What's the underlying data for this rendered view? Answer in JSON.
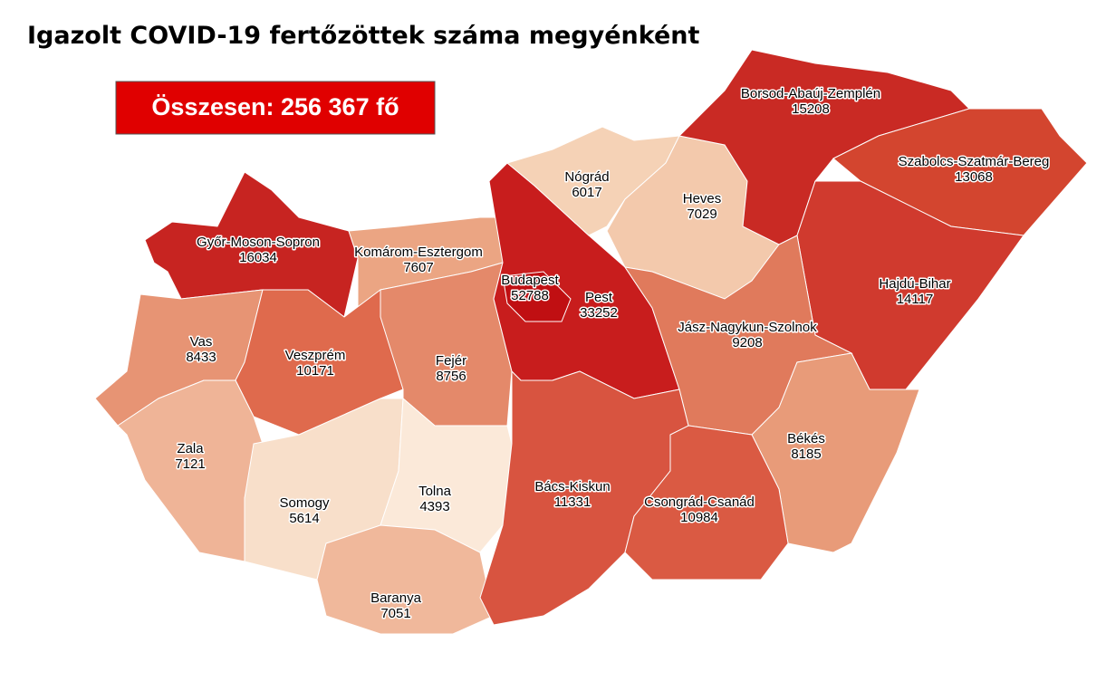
{
  "title": "Igazolt COVID-19 fertőzöttek száma megyénként",
  "total": "Összesen: 256 367 fő",
  "regions": [
    {
      "name": "Győr-Moson-Sopron",
      "value": 16034,
      "color": "#c72421"
    },
    {
      "name": "Komárom-Esztergom",
      "value": 7607,
      "color": "#eba583"
    },
    {
      "name": "Vas",
      "value": 8433,
      "color": "#e79474"
    },
    {
      "name": "Veszprém",
      "value": 10171,
      "color": "#df6a4d"
    },
    {
      "name": "Fejér",
      "value": 8756,
      "color": "#e4896a"
    },
    {
      "name": "Zala",
      "value": 7121,
      "color": "#efb497"
    },
    {
      "name": "Somogy",
      "value": 5614,
      "color": "#f8dfca"
    },
    {
      "name": "Tolna",
      "value": 4393,
      "color": "#fbe9d9"
    },
    {
      "name": "Baranya",
      "value": 7051,
      "color": "#f0b89b"
    },
    {
      "name": "Pest",
      "value": 33252,
      "color": "#c81d1d"
    },
    {
      "name": "Nógrád",
      "value": 6017,
      "color": "#f5d2b6"
    },
    {
      "name": "Heves",
      "value": 7029,
      "color": "#f3c9ac"
    },
    {
      "name": "Borsod-Abaúj-Zemplén",
      "value": 15208,
      "color": "#c92a24"
    },
    {
      "name": "Szabolcs-Szatmár-Bereg",
      "value": 13068,
      "color": "#d3452f"
    },
    {
      "name": "Hajdú-Bihar",
      "value": 14117,
      "color": "#d03a2e"
    },
    {
      "name": "Jász-Nagykun-Szolnok",
      "value": 9208,
      "color": "#e07a5c"
    },
    {
      "name": "Békés",
      "value": 8185,
      "color": "#e89b79"
    },
    {
      "name": "Bács-Kiskun",
      "value": 11331,
      "color": "#d85440"
    },
    {
      "name": "Csongrád-Csanád",
      "value": 10984,
      "color": "#da5a43"
    },
    {
      "name": "Budapest",
      "value": 52788,
      "color": "#c00f12"
    }
  ]
}
